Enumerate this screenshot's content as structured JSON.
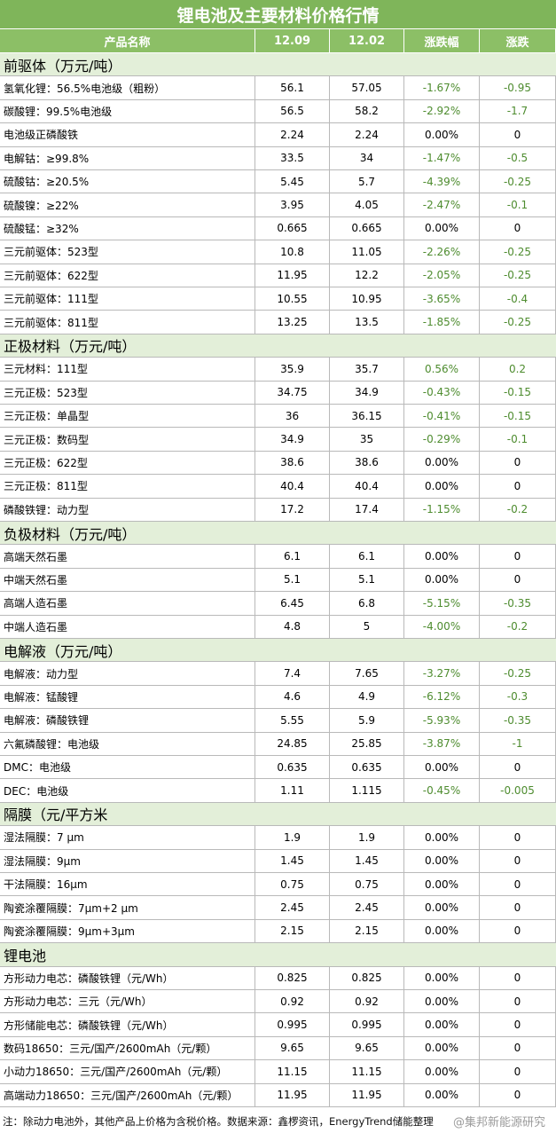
{
  "title": "锂电池及主要材料价格行情",
  "header": [
    "产品名称",
    "12.09",
    "12.02",
    "涨跌幅",
    "涨跌"
  ],
  "sections": [
    {
      "name": "前驱体（万元/吨）",
      "rows": [
        [
          "氢氧化锂：56.5%电池级（粗粉）",
          "56.1",
          "57.05",
          "-1.67%",
          "-0.95"
        ],
        [
          "碳酸锂：99.5%电池级",
          "56.5",
          "58.2",
          "-2.92%",
          "-1.7"
        ],
        [
          "电池级正磷酸铁",
          "2.24",
          "2.24",
          "0.00%",
          "0"
        ],
        [
          "电解钴：≥99.8%",
          "33.5",
          "34",
          "-1.47%",
          "-0.5"
        ],
        [
          "硫酸钴：≥20.5%",
          "5.45",
          "5.7",
          "-4.39%",
          "-0.25"
        ],
        [
          "硫酸镍：≥22%",
          "3.95",
          "4.05",
          "-2.47%",
          "-0.1"
        ],
        [
          "硫酸锰：≥32%",
          "0.665",
          "0.665",
          "0.00%",
          "0"
        ],
        [
          "三元前驱体：523型",
          "10.8",
          "11.05",
          "-2.26%",
          "-0.25"
        ],
        [
          "三元前驱体：622型",
          "11.95",
          "12.2",
          "-2.05%",
          "-0.25"
        ],
        [
          "三元前驱体：111型",
          "10.55",
          "10.95",
          "-3.65%",
          "-0.4"
        ],
        [
          "三元前驱体：811型",
          "13.25",
          "13.5",
          "-1.85%",
          "-0.25"
        ]
      ]
    },
    {
      "name": "正极材料（万元/吨）",
      "rows": [
        [
          "三元材料：111型",
          "35.9",
          "35.7",
          "0.56%",
          "0.2"
        ],
        [
          "三元正极：523型",
          "34.75",
          "34.9",
          "-0.43%",
          "-0.15"
        ],
        [
          "三元正极：单晶型",
          "36",
          "36.15",
          "-0.41%",
          "-0.15"
        ],
        [
          "三元正极：数码型",
          "34.9",
          "35",
          "-0.29%",
          "-0.1"
        ],
        [
          "三元正极：622型",
          "38.6",
          "38.6",
          "0.00%",
          "0"
        ],
        [
          "三元正极：811型",
          "40.4",
          "40.4",
          "0.00%",
          "0"
        ],
        [
          "磷酸铁锂：动力型",
          "17.2",
          "17.4",
          "-1.15%",
          "-0.2"
        ]
      ]
    },
    {
      "name": "负极材料（万元/吨）",
      "rows": [
        [
          "高端天然石墨",
          "6.1",
          "6.1",
          "0.00%",
          "0"
        ],
        [
          "中端天然石墨",
          "5.1",
          "5.1",
          "0.00%",
          "0"
        ],
        [
          "高端人造石墨",
          "6.45",
          "6.8",
          "-5.15%",
          "-0.35"
        ],
        [
          "中端人造石墨",
          "4.8",
          "5",
          "-4.00%",
          "-0.2"
        ]
      ]
    },
    {
      "name": "电解液（万元/吨）",
      "rows": [
        [
          "电解液：动力型",
          "7.4",
          "7.65",
          "-3.27%",
          "-0.25"
        ],
        [
          "电解液：锰酸锂",
          "4.6",
          "4.9",
          "-6.12%",
          "-0.3"
        ],
        [
          "电解液：磷酸铁锂",
          "5.55",
          "5.9",
          "-5.93%",
          "-0.35"
        ],
        [
          "六氟磷酸锂：电池级",
          "24.85",
          "25.85",
          "-3.87%",
          "-1"
        ],
        [
          "DMC：电池级",
          "0.635",
          "0.635",
          "0.00%",
          "0"
        ],
        [
          "DEC：电池级",
          "1.11",
          "1.115",
          "-0.45%",
          "-0.005"
        ]
      ]
    },
    {
      "name": "隔膜（元/平方米",
      "rows": [
        [
          "湿法隔膜：7 μm",
          "1.9",
          "1.9",
          "0.00%",
          "0"
        ],
        [
          "湿法隔膜：9μm",
          "1.45",
          "1.45",
          "0.00%",
          "0"
        ],
        [
          "干法隔膜：16μm",
          "0.75",
          "0.75",
          "0.00%",
          "0"
        ],
        [
          "陶瓷涂覆隔膜：7μm+2 μm",
          "2.45",
          "2.45",
          "0.00%",
          "0"
        ],
        [
          "陶瓷涂覆隔膜：9μm+3μm",
          "2.15",
          "2.15",
          "0.00%",
          "0"
        ]
      ]
    },
    {
      "name": "锂电池",
      "rows": [
        [
          "方形动力电芯：磷酸铁锂（元/Wh）",
          "0.825",
          "0.825",
          "0.00%",
          "0"
        ],
        [
          "方形动力电芯：三元（元/Wh）",
          "0.92",
          "0.92",
          "0.00%",
          "0"
        ],
        [
          "方形储能电芯：磷酸铁锂（元/Wh）",
          "0.995",
          "0.995",
          "0.00%",
          "0"
        ],
        [
          "数码18650：三元/国产/2600mAh（元/颗）",
          "9.65",
          "9.65",
          "0.00%",
          "0"
        ],
        [
          "小动力18650：三元/国产/2600mAh（元/颗）",
          "11.15",
          "11.15",
          "0.00%",
          "0"
        ],
        [
          "高端动力18650：三元/国产/2600mAh（元/颗）",
          "11.95",
          "11.95",
          "0.00%",
          "0"
        ]
      ]
    }
  ],
  "note": "注：除动力电池外，其他产品上价格为含税价格。数据来源：鑫椤资讯，EnergyTrend储能整理",
  "watermark": "@集邦新能源研究"
}
